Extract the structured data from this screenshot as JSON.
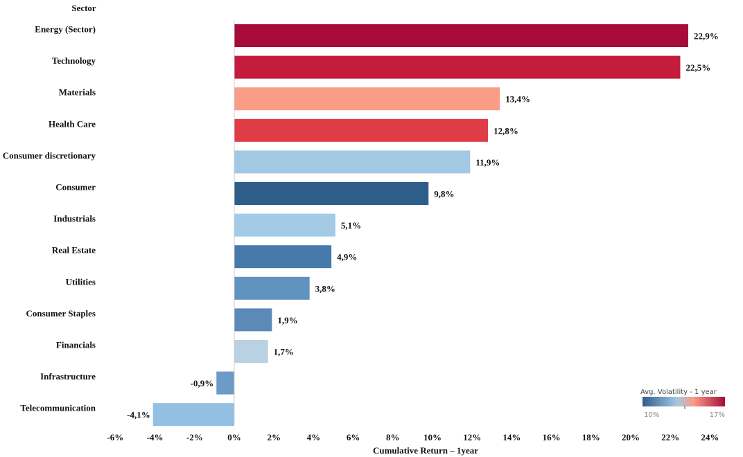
{
  "chart_data": {
    "type": "bar",
    "orientation": "horizontal",
    "category_header": "Sector",
    "xlabel": "Cumulative Return – 1year",
    "xlim": [
      -6,
      24
    ],
    "xticks": [
      "-6%",
      "-4%",
      "-2%",
      "0%",
      "2%",
      "4%",
      "6%",
      "8%",
      "10%",
      "12%",
      "14%",
      "16%",
      "18%",
      "20%",
      "22%",
      "24%"
    ],
    "grid": false,
    "categories": [
      "Energy (Sector)",
      "Technology",
      "Materials",
      "Health Care",
      "Consumer discretionary",
      "Consumer",
      "Industrials",
      "Real Estate",
      "Utilities",
      "Consumer Staples",
      "Financials",
      "Infrastructure",
      "Telecommunication"
    ],
    "values": [
      22.9,
      22.5,
      13.4,
      12.8,
      11.9,
      9.8,
      5.1,
      4.9,
      3.8,
      1.9,
      1.7,
      -0.9,
      -4.1
    ],
    "value_labels": [
      "22,9%",
      "22,5%",
      "13,4%",
      "12,8%",
      "11,9%",
      "9,8%",
      "5,1%",
      "4,9%",
      "3,8%",
      "1,9%",
      "1,7%",
      "-0,9%",
      "-4,1%"
    ],
    "bar_colors": [
      "#a60c37",
      "#c41c3c",
      "#fa9c86",
      "#e03c46",
      "#a3c8e4",
      "#2f5d8a",
      "#a3cbe6",
      "#4779ab",
      "#6193c0",
      "#5b8ab9",
      "#bad1e1",
      "#6c9bc8",
      "#93bfe3"
    ],
    "legend": {
      "title": "Avg. Volatility - 1 year",
      "min_label": "10%",
      "max_label": "17%",
      "colors": [
        "#2f5d8a",
        "#a3c8e4",
        "#fa9c86",
        "#a60c37"
      ],
      "placement": "bottom-right"
    }
  }
}
